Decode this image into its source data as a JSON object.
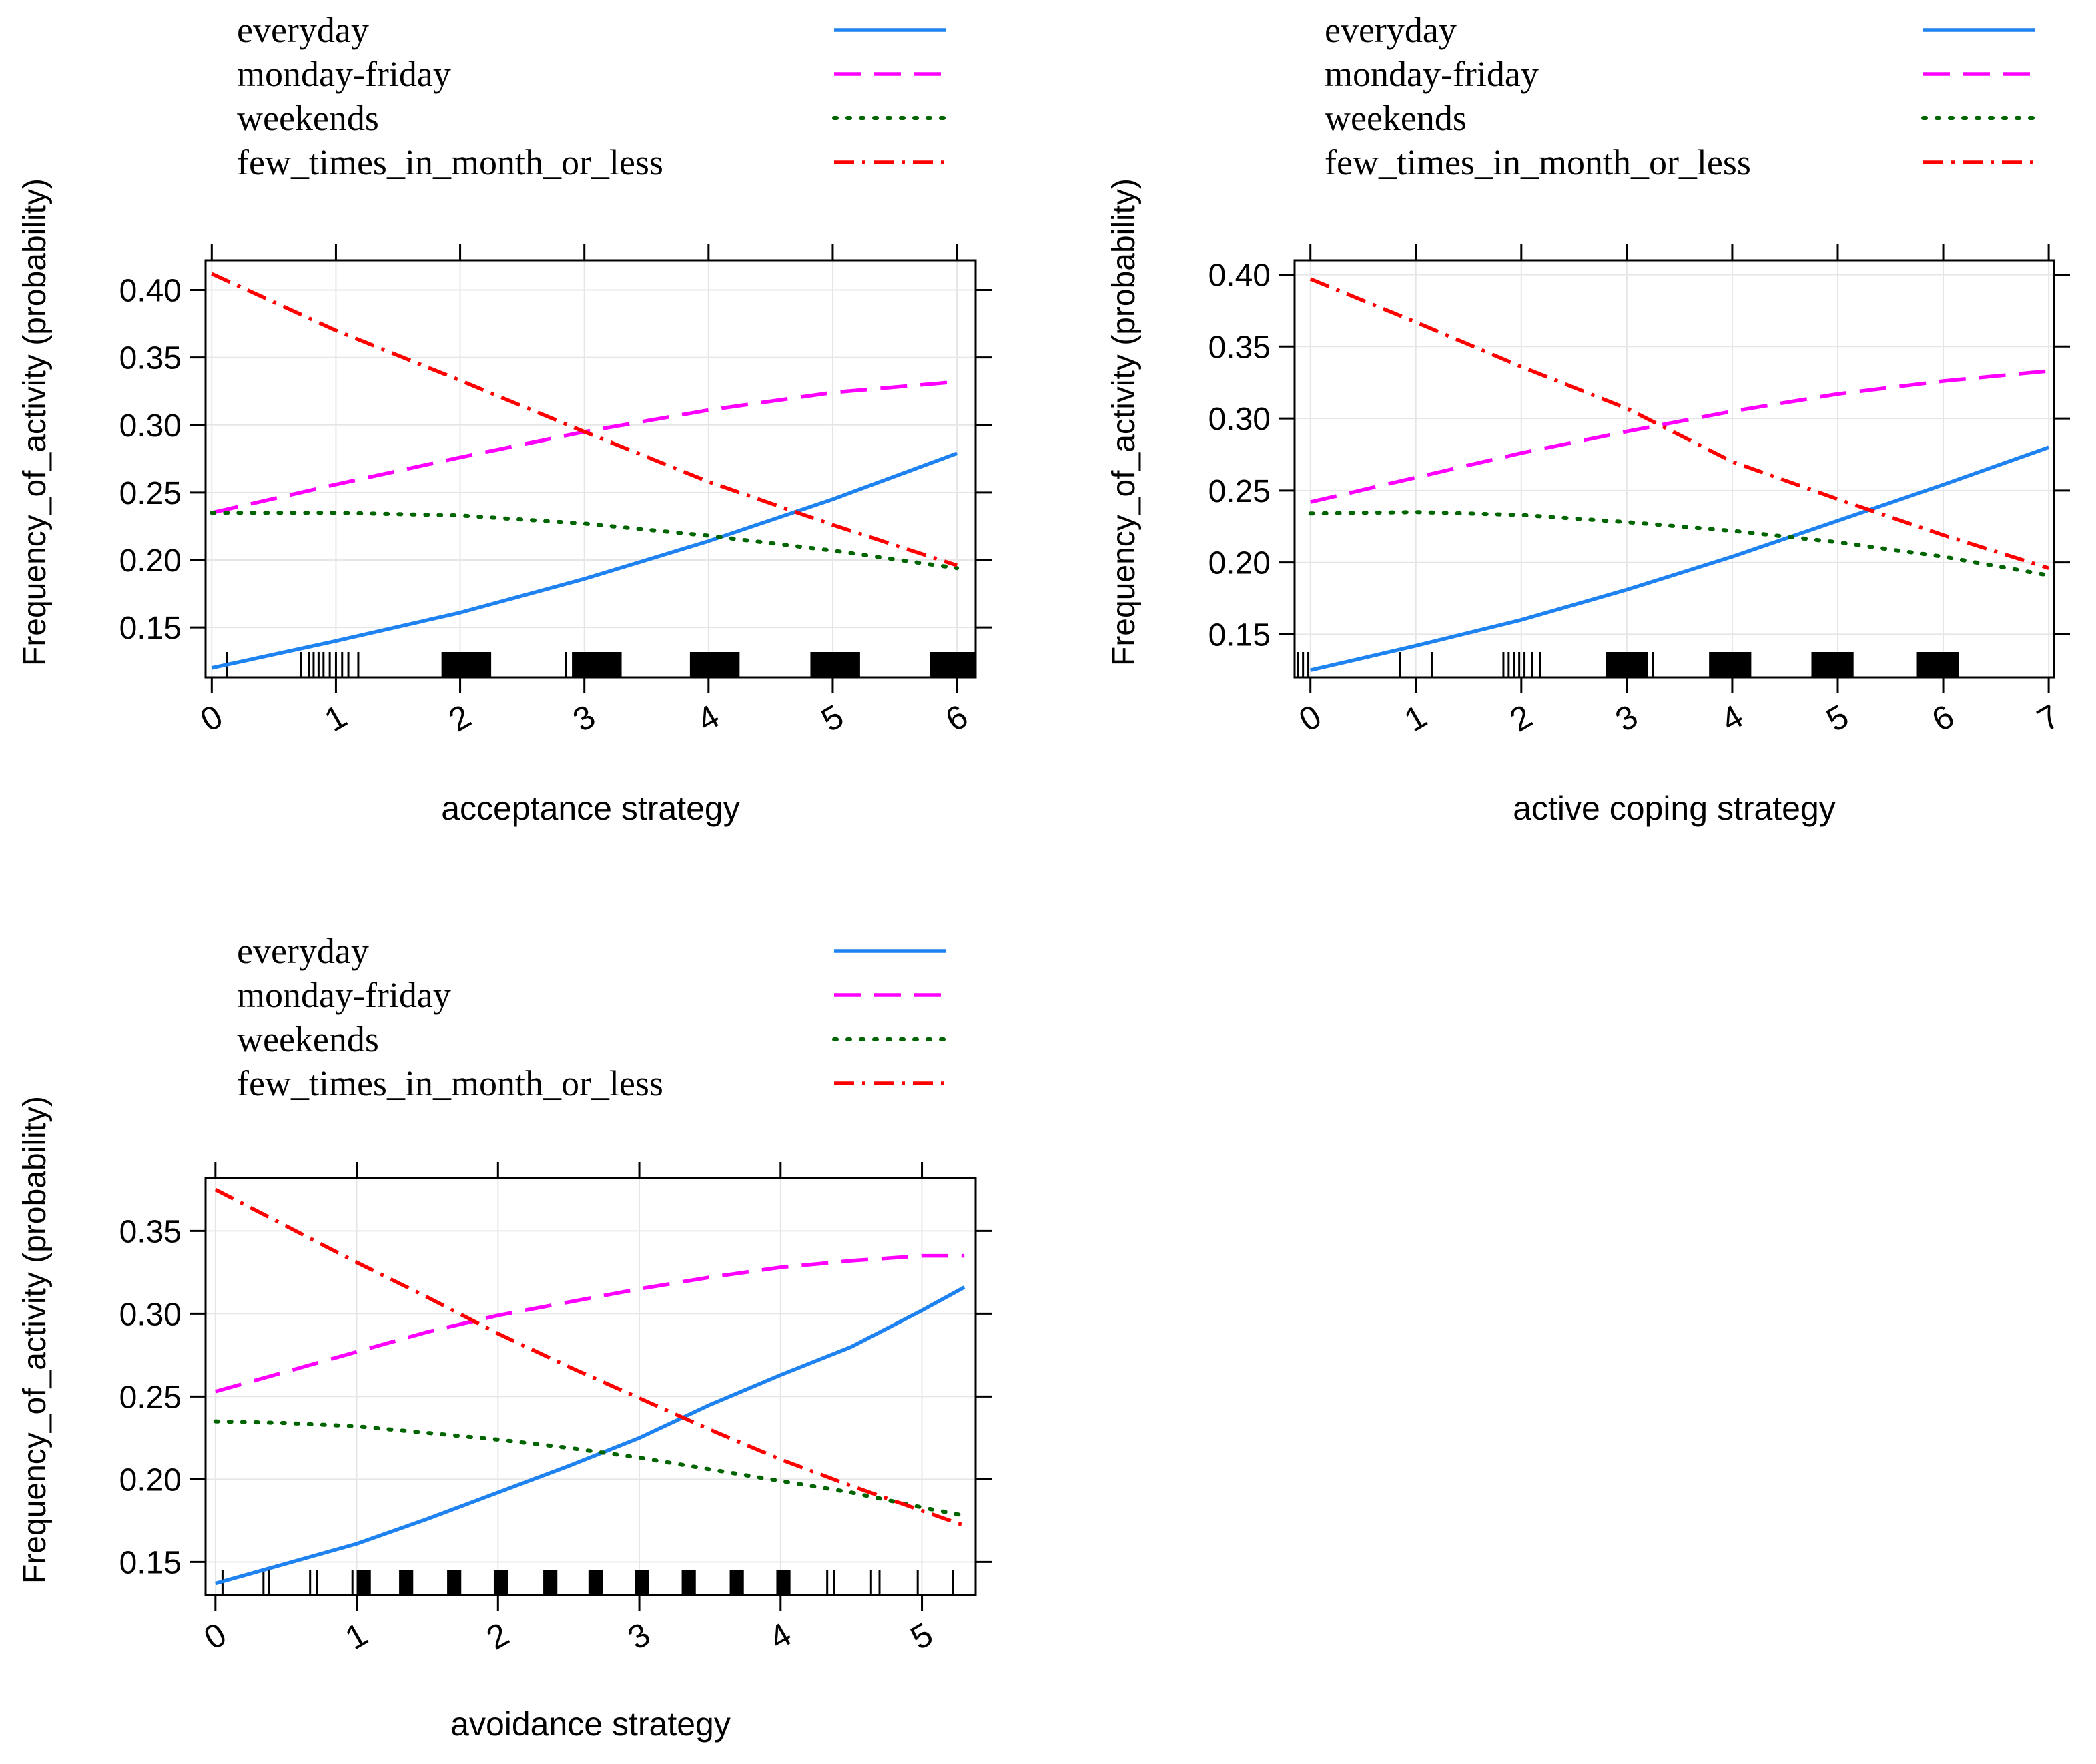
{
  "chart_data": [
    {
      "type": "line",
      "xlabel": "acceptance strategy",
      "ylabel": "Frequency_of_activity (probability)",
      "xlim": [
        -0.05,
        6.15
      ],
      "ylim": [
        0.113,
        0.422
      ],
      "xticks": [
        0,
        1,
        2,
        3,
        4,
        5,
        6
      ],
      "yticks": [
        0.15,
        0.2,
        0.25,
        0.3,
        0.35,
        0.4
      ],
      "ytick_labels": [
        "0.15",
        "0.20",
        "0.25",
        "0.30",
        "0.35",
        "0.40"
      ],
      "x": [
        0,
        1,
        2,
        3,
        4,
        5,
        6
      ],
      "series": [
        {
          "name": "everyday",
          "color": "#1e82f0",
          "dash": "solid",
          "values": [
            0.12,
            0.14,
            0.161,
            0.186,
            0.214,
            0.245,
            0.279
          ]
        },
        {
          "name": "monday-friday",
          "color": "#ff00ff",
          "dash": "dashed",
          "values": [
            0.235,
            0.256,
            0.276,
            0.295,
            0.311,
            0.324,
            0.332
          ]
        },
        {
          "name": "weekends",
          "color": "#006400",
          "dash": "dotted",
          "values": [
            0.235,
            0.235,
            0.233,
            0.227,
            0.218,
            0.207,
            0.194
          ]
        },
        {
          "name": "few_times_in_month_or_less",
          "color": "#ff0000",
          "dash": "dotdash",
          "values": [
            0.412,
            0.37,
            0.333,
            0.295,
            0.258,
            0.226,
            0.196
          ]
        }
      ],
      "rug": {
        "solid_bands": [
          [
            1.85,
            2.25
          ],
          [
            2.9,
            3.3
          ],
          [
            3.85,
            4.25
          ],
          [
            4.82,
            5.22
          ],
          [
            5.78,
            6.15
          ]
        ],
        "ticks": [
          0.12,
          0.72,
          0.78,
          0.82,
          0.86,
          0.9,
          0.95,
          1.0,
          1.05,
          1.1,
          1.18,
          2.85,
          2.93
        ]
      }
    },
    {
      "type": "line",
      "xlabel": "active coping strategy",
      "ylabel": "Frequency_of_activity (probability)",
      "xlim": [
        -0.15,
        7.05
      ],
      "ylim": [
        0.12,
        0.41
      ],
      "xticks": [
        0,
        1,
        2,
        3,
        4,
        5,
        6,
        7
      ],
      "yticks": [
        0.15,
        0.2,
        0.25,
        0.3,
        0.35,
        0.4
      ],
      "ytick_labels": [
        "0.15",
        "0.20",
        "0.25",
        "0.30",
        "0.35",
        "0.40"
      ],
      "x": [
        0,
        1,
        2,
        3,
        4,
        5,
        6,
        7
      ],
      "series": [
        {
          "name": "everyday",
          "color": "#1e82f0",
          "dash": "solid",
          "values": [
            0.125,
            0.142,
            0.16,
            0.181,
            0.204,
            0.229,
            0.254,
            0.28
          ]
        },
        {
          "name": "monday-friday",
          "color": "#ff00ff",
          "dash": "dashed",
          "values": [
            0.242,
            0.259,
            0.276,
            0.291,
            0.305,
            0.317,
            0.326,
            0.333
          ]
        },
        {
          "name": "weekends",
          "color": "#006400",
          "dash": "dotted",
          "values": [
            0.234,
            0.235,
            0.233,
            0.228,
            0.222,
            0.214,
            0.204,
            0.191
          ]
        },
        {
          "name": "few_times_in_month_or_less",
          "color": "#ff0000",
          "dash": "dotdash",
          "values": [
            0.397,
            0.367,
            0.336,
            0.307,
            0.27,
            0.244,
            0.219,
            0.196
          ]
        }
      ],
      "rug": {
        "solid_bands": [
          [
            2.8,
            3.2
          ],
          [
            3.78,
            4.18
          ],
          [
            4.75,
            5.15
          ],
          [
            5.75,
            6.15
          ]
        ],
        "ticks": [
          -0.12,
          -0.07,
          -0.02,
          0.85,
          1.15,
          1.83,
          1.88,
          1.93,
          1.98,
          2.03,
          2.1,
          2.18,
          3.25
        ]
      }
    },
    {
      "type": "line",
      "xlabel": "avoidance strategy",
      "ylabel": "Frequency_of_activity (probability)",
      "xlim": [
        -0.07,
        5.38
      ],
      "ylim": [
        0.13,
        0.382
      ],
      "xticks": [
        0,
        1,
        2,
        3,
        4,
        5
      ],
      "yticks": [
        0.15,
        0.2,
        0.25,
        0.3,
        0.35
      ],
      "ytick_labels": [
        "0.15",
        "0.20",
        "0.25",
        "0.30",
        "0.35"
      ],
      "x": [
        0,
        0.5,
        1,
        1.5,
        2,
        2.5,
        3,
        3.5,
        4,
        4.5,
        5,
        5.3
      ],
      "series": [
        {
          "name": "everyday",
          "color": "#1e82f0",
          "dash": "solid",
          "values": [
            0.137,
            0.149,
            0.161,
            0.176,
            0.192,
            0.208,
            0.225,
            0.245,
            0.263,
            0.28,
            0.302,
            0.316
          ]
        },
        {
          "name": "monday-friday",
          "color": "#ff00ff",
          "dash": "dashed",
          "values": [
            0.253,
            0.265,
            0.277,
            0.289,
            0.299,
            0.307,
            0.315,
            0.322,
            0.328,
            0.332,
            0.335,
            0.335
          ]
        },
        {
          "name": "weekends",
          "color": "#006400",
          "dash": "dotted",
          "values": [
            0.235,
            0.234,
            0.232,
            0.228,
            0.224,
            0.219,
            0.213,
            0.206,
            0.199,
            0.192,
            0.183,
            0.178
          ]
        },
        {
          "name": "few_times_in_month_or_less",
          "color": "#ff0000",
          "dash": "dotdash",
          "values": [
            0.375,
            0.353,
            0.331,
            0.31,
            0.288,
            0.268,
            0.249,
            0.23,
            0.212,
            0.196,
            0.181,
            0.172
          ]
        }
      ],
      "rug": {
        "solid_bands": [
          [
            1.0,
            1.1
          ],
          [
            1.3,
            1.4
          ],
          [
            1.64,
            1.74
          ],
          [
            1.97,
            2.07
          ],
          [
            2.32,
            2.42
          ],
          [
            2.64,
            2.74
          ],
          [
            2.97,
            3.07
          ],
          [
            3.3,
            3.4
          ],
          [
            3.64,
            3.74
          ],
          [
            3.97,
            4.07
          ]
        ],
        "ticks": [
          0.05,
          0.34,
          0.38,
          0.67,
          0.72,
          0.97,
          4.33,
          4.38,
          4.64,
          4.7,
          4.97,
          5.22
        ]
      }
    }
  ]
}
